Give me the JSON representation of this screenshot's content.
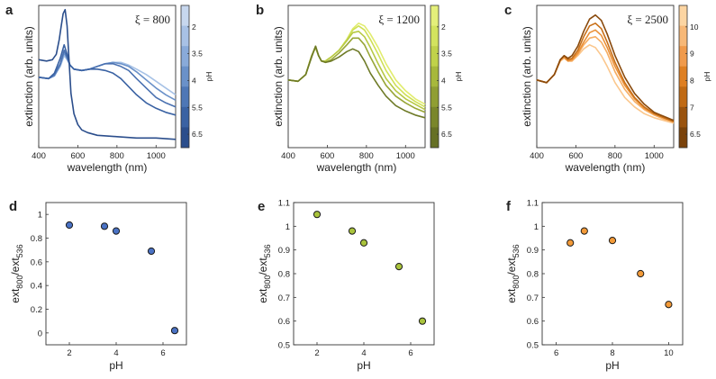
{
  "chart_data": [
    {
      "panel": "a",
      "type": "line",
      "annotation": "ξ = 800",
      "xlabel": "wavelength (nm)",
      "ylabel": "extinction (arb. units)",
      "xlim": [
        400,
        1100
      ],
      "xticks": [
        "400",
        "600",
        "800",
        "1000"
      ],
      "colorbar": {
        "label": "pH",
        "ticks": [
          "2",
          "3.5",
          "4",
          "5.5",
          "6.5"
        ],
        "colors": [
          "#c7d7ee",
          "#a8c1e5",
          "#89aad9",
          "#6a91c9",
          "#4e77b6",
          "#3a62a3",
          "#2b4e8c"
        ]
      },
      "grid": false,
      "series": [
        {
          "pH": 2,
          "color": "#a7c2e6",
          "x": [
            400,
            450,
            480,
            510,
            530,
            545,
            560,
            580,
            620,
            660,
            700,
            740,
            780,
            820,
            860,
            900,
            950,
            1000,
            1050,
            1100
          ],
          "y": [
            0.5,
            0.49,
            0.51,
            0.58,
            0.66,
            0.63,
            0.59,
            0.56,
            0.55,
            0.56,
            0.58,
            0.6,
            0.61,
            0.61,
            0.59,
            0.56,
            0.52,
            0.47,
            0.42,
            0.37
          ]
        },
        {
          "pH": 3.5,
          "color": "#6a91c9",
          "x": [
            400,
            450,
            480,
            510,
            530,
            545,
            560,
            580,
            620,
            660,
            700,
            740,
            780,
            820,
            860,
            900,
            950,
            1000,
            1050,
            1100
          ],
          "y": [
            0.5,
            0.49,
            0.51,
            0.59,
            0.68,
            0.64,
            0.59,
            0.56,
            0.55,
            0.56,
            0.58,
            0.6,
            0.61,
            0.6,
            0.58,
            0.54,
            0.48,
            0.42,
            0.37,
            0.33
          ]
        },
        {
          "pH": 4,
          "color": "#4a71b1",
          "x": [
            400,
            450,
            480,
            510,
            530,
            545,
            560,
            580,
            620,
            660,
            700,
            740,
            780,
            820,
            860,
            900,
            950,
            1000,
            1050,
            1100
          ],
          "y": [
            0.5,
            0.49,
            0.52,
            0.6,
            0.7,
            0.65,
            0.59,
            0.56,
            0.55,
            0.56,
            0.58,
            0.6,
            0.6,
            0.58,
            0.55,
            0.49,
            0.42,
            0.35,
            0.31,
            0.28
          ]
        },
        {
          "pH": 5.5,
          "color": "#3a62a3",
          "x": [
            400,
            450,
            480,
            510,
            530,
            545,
            560,
            580,
            620,
            660,
            700,
            740,
            780,
            820,
            860,
            900,
            950,
            1000,
            1050,
            1100
          ],
          "y": [
            0.5,
            0.49,
            0.53,
            0.64,
            0.74,
            0.67,
            0.59,
            0.56,
            0.55,
            0.56,
            0.56,
            0.55,
            0.53,
            0.49,
            0.43,
            0.37,
            0.31,
            0.27,
            0.24,
            0.22
          ]
        },
        {
          "pH": 6.5,
          "color": "#2b4e8c",
          "x": [
            400,
            440,
            470,
            490,
            505,
            515,
            525,
            535,
            545,
            555,
            565,
            580,
            600,
            620,
            650,
            700,
            800,
            900,
            1000,
            1100
          ],
          "y": [
            0.63,
            0.62,
            0.63,
            0.67,
            0.78,
            0.88,
            0.97,
            1.0,
            0.88,
            0.62,
            0.38,
            0.23,
            0.15,
            0.11,
            0.09,
            0.07,
            0.06,
            0.05,
            0.05,
            0.04
          ]
        }
      ]
    },
    {
      "panel": "b",
      "type": "line",
      "annotation": "ξ = 1200",
      "xlabel": "wavelength (nm)",
      "ylabel": "extinction (arb. units)",
      "xlim": [
        400,
        1100
      ],
      "xticks": [
        "400",
        "600",
        "800",
        "1000"
      ],
      "colorbar": {
        "label": "pH",
        "ticks": [
          "2",
          "3.5",
          "4",
          "5.5",
          "6.5"
        ],
        "colors": [
          "#e4ef7a",
          "#d3e35e",
          "#c0d24a",
          "#a7b83c",
          "#909e33",
          "#7a862b",
          "#667025"
        ]
      },
      "grid": false,
      "series": [
        {
          "pH": 2,
          "color": "#e1ec6e",
          "x": [
            400,
            450,
            490,
            520,
            540,
            555,
            570,
            590,
            620,
            660,
            700,
            730,
            760,
            790,
            820,
            860,
            900,
            950,
            1000,
            1050,
            1100
          ],
          "y": [
            0.48,
            0.47,
            0.52,
            0.66,
            0.72,
            0.66,
            0.62,
            0.62,
            0.65,
            0.7,
            0.78,
            0.86,
            0.9,
            0.88,
            0.82,
            0.72,
            0.6,
            0.48,
            0.4,
            0.34,
            0.3
          ]
        },
        {
          "pH": 3.5,
          "color": "#cfe055",
          "x": [
            400,
            450,
            490,
            520,
            540,
            555,
            570,
            590,
            620,
            660,
            700,
            730,
            760,
            790,
            820,
            860,
            900,
            950,
            1000,
            1050,
            1100
          ],
          "y": [
            0.48,
            0.47,
            0.52,
            0.66,
            0.72,
            0.66,
            0.62,
            0.62,
            0.65,
            0.7,
            0.78,
            0.85,
            0.88,
            0.85,
            0.78,
            0.67,
            0.55,
            0.44,
            0.37,
            0.32,
            0.28
          ]
        },
        {
          "pH": 4,
          "color": "#b7c944",
          "x": [
            400,
            450,
            490,
            520,
            540,
            555,
            570,
            590,
            620,
            660,
            700,
            730,
            760,
            790,
            820,
            860,
            900,
            950,
            1000,
            1050,
            1100
          ],
          "y": [
            0.48,
            0.47,
            0.52,
            0.66,
            0.72,
            0.66,
            0.62,
            0.62,
            0.65,
            0.7,
            0.77,
            0.83,
            0.84,
            0.8,
            0.72,
            0.6,
            0.49,
            0.4,
            0.34,
            0.3,
            0.26
          ]
        },
        {
          "pH": 5.5,
          "color": "#98a636",
          "x": [
            400,
            450,
            490,
            520,
            540,
            555,
            570,
            590,
            620,
            660,
            700,
            730,
            760,
            790,
            820,
            860,
            900,
            950,
            1000,
            1050,
            1100
          ],
          "y": [
            0.48,
            0.47,
            0.52,
            0.66,
            0.73,
            0.66,
            0.62,
            0.61,
            0.63,
            0.68,
            0.74,
            0.79,
            0.79,
            0.74,
            0.65,
            0.54,
            0.44,
            0.36,
            0.31,
            0.27,
            0.24
          ]
        },
        {
          "pH": 6.5,
          "color": "#6e7a27",
          "x": [
            400,
            450,
            490,
            520,
            540,
            555,
            570,
            590,
            620,
            660,
            700,
            730,
            760,
            790,
            820,
            860,
            900,
            950,
            1000,
            1050,
            1100
          ],
          "y": [
            0.48,
            0.47,
            0.52,
            0.65,
            0.73,
            0.66,
            0.62,
            0.61,
            0.62,
            0.65,
            0.69,
            0.71,
            0.69,
            0.62,
            0.53,
            0.44,
            0.36,
            0.29,
            0.25,
            0.22,
            0.2
          ]
        }
      ]
    },
    {
      "panel": "c",
      "type": "line",
      "annotation": "ξ = 2500",
      "xlabel": "wavelength (nm)",
      "ylabel": "extinction (arb. units)",
      "xlim": [
        400,
        1100
      ],
      "xticks": [
        "400",
        "600",
        "800",
        "1000"
      ],
      "colorbar": {
        "label": "pH",
        "ticks": [
          "10",
          "9",
          "8",
          "7",
          "6.5"
        ],
        "colors": [
          "#fcd5a2",
          "#f7b877",
          "#f09a4b",
          "#de7f22",
          "#c06a14",
          "#9a530e",
          "#7a420a"
        ]
      },
      "grid": false,
      "series": [
        {
          "pH": 10,
          "color": "#fbc78d",
          "x": [
            400,
            450,
            490,
            520,
            540,
            560,
            580,
            610,
            640,
            670,
            700,
            730,
            760,
            800,
            850,
            900,
            950,
            1000,
            1050,
            1100
          ],
          "y": [
            0.48,
            0.46,
            0.52,
            0.62,
            0.64,
            0.62,
            0.62,
            0.66,
            0.71,
            0.74,
            0.72,
            0.66,
            0.58,
            0.46,
            0.35,
            0.28,
            0.23,
            0.2,
            0.18,
            0.16
          ]
        },
        {
          "pH": 9,
          "color": "#f6ad62",
          "x": [
            400,
            450,
            490,
            520,
            540,
            560,
            580,
            610,
            640,
            670,
            700,
            730,
            760,
            800,
            850,
            900,
            950,
            1000,
            1050,
            1100
          ],
          "y": [
            0.48,
            0.46,
            0.52,
            0.62,
            0.65,
            0.62,
            0.62,
            0.67,
            0.74,
            0.79,
            0.8,
            0.76,
            0.68,
            0.54,
            0.41,
            0.32,
            0.26,
            0.22,
            0.19,
            0.17
          ]
        },
        {
          "pH": 8,
          "color": "#ea9037",
          "x": [
            400,
            450,
            490,
            520,
            540,
            560,
            580,
            610,
            640,
            670,
            700,
            730,
            760,
            800,
            850,
            900,
            950,
            1000,
            1050,
            1100
          ],
          "y": [
            0.48,
            0.46,
            0.52,
            0.63,
            0.65,
            0.62,
            0.63,
            0.68,
            0.76,
            0.83,
            0.85,
            0.81,
            0.72,
            0.58,
            0.44,
            0.34,
            0.27,
            0.23,
            0.2,
            0.17
          ]
        },
        {
          "pH": 7,
          "color": "#c86f17",
          "x": [
            400,
            450,
            490,
            520,
            540,
            560,
            580,
            610,
            640,
            670,
            700,
            730,
            760,
            800,
            850,
            900,
            950,
            1000,
            1050,
            1100
          ],
          "y": [
            0.48,
            0.46,
            0.52,
            0.63,
            0.66,
            0.63,
            0.64,
            0.7,
            0.8,
            0.88,
            0.9,
            0.86,
            0.76,
            0.61,
            0.46,
            0.35,
            0.28,
            0.23,
            0.2,
            0.17
          ]
        },
        {
          "pH": 6.5,
          "color": "#8a4a0c",
          "x": [
            400,
            450,
            490,
            520,
            540,
            560,
            580,
            610,
            640,
            670,
            700,
            730,
            760,
            800,
            850,
            900,
            950,
            1000,
            1050,
            1100
          ],
          "y": [
            0.48,
            0.46,
            0.52,
            0.63,
            0.66,
            0.64,
            0.66,
            0.73,
            0.84,
            0.93,
            0.96,
            0.92,
            0.82,
            0.66,
            0.5,
            0.38,
            0.3,
            0.24,
            0.21,
            0.18
          ]
        }
      ]
    },
    {
      "panel": "d",
      "type": "scatter",
      "xlabel": "pH",
      "ylabel": "ext800/ext536",
      "ylabel_parts": {
        "base1": "ext",
        "sub1": "800",
        "slash": "/ext",
        "sub2": "536"
      },
      "xlim": [
        1,
        7
      ],
      "ylim": [
        -0.1,
        1.1
      ],
      "xticks": [
        2,
        4,
        6
      ],
      "yticks": [
        0,
        0.2,
        0.4,
        0.6,
        0.8,
        1
      ],
      "ytick_labels": [
        "0",
        "0.2",
        "0.4",
        "0.6",
        "0.8",
        "1"
      ],
      "marker_color": "#4a72c4",
      "x": [
        2,
        3.5,
        4,
        5.5,
        6.5
      ],
      "y": [
        0.91,
        0.9,
        0.86,
        0.69,
        0.02
      ]
    },
    {
      "panel": "e",
      "type": "scatter",
      "xlabel": "pH",
      "ylabel": "ext800/ext536",
      "ylabel_parts": {
        "base1": "ext",
        "sub1": "800",
        "slash": "/ext",
        "sub2": "536"
      },
      "xlim": [
        1,
        7
      ],
      "ylim": [
        0.5,
        1.1
      ],
      "xticks": [
        2,
        4,
        6
      ],
      "yticks": [
        0.5,
        0.6,
        0.7,
        0.8,
        0.9,
        1,
        1.1
      ],
      "ytick_labels": [
        "0.5",
        "0.6",
        "0.7",
        "0.8",
        "0.9",
        "1",
        "1.1"
      ],
      "marker_color": "#a9c33c",
      "x": [
        2,
        3.5,
        4,
        5.5,
        6.5
      ],
      "y": [
        1.05,
        0.98,
        0.93,
        0.83,
        0.6
      ]
    },
    {
      "panel": "f",
      "type": "scatter",
      "xlabel": "pH",
      "ylabel": "ext800/ext536",
      "ylabel_parts": {
        "base1": "ext",
        "sub1": "800",
        "slash": "/ext",
        "sub2": "536"
      },
      "xlim": [
        5.5,
        10.5
      ],
      "ylim": [
        0.5,
        1.1
      ],
      "xticks": [
        6,
        8,
        10
      ],
      "yticks": [
        0.5,
        0.6,
        0.7,
        0.8,
        0.9,
        1,
        1.1
      ],
      "ytick_labels": [
        "0.5",
        "0.6",
        "0.7",
        "0.8",
        "0.9",
        "1",
        "1.1"
      ],
      "marker_color": "#f39a38",
      "x": [
        6.5,
        7,
        8,
        9,
        10
      ],
      "y": [
        0.93,
        0.98,
        0.94,
        0.8,
        0.67
      ]
    }
  ]
}
